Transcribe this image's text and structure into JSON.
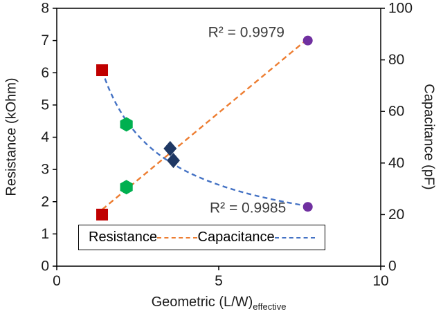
{
  "chart_data": {
    "type": "scatter",
    "title": "",
    "xlabel": "Geometric (L/W)",
    "xlabel_subscript": "effective",
    "ylabel_left": "Resistance (kOhm)",
    "ylabel_right": "Capacitance (pF)",
    "xlim": [
      0,
      10
    ],
    "xticks": [
      0,
      5,
      10
    ],
    "ylim_left": [
      0,
      8
    ],
    "yticks_left": [
      0,
      1,
      2,
      3,
      4,
      5,
      6,
      7,
      8
    ],
    "ylim_right": [
      0,
      100
    ],
    "yticks_right": [
      0,
      20,
      40,
      60,
      80,
      100
    ],
    "grid": false,
    "legend_position": "bottom-inside",
    "series": [
      {
        "name": "Resistance",
        "axis": "left",
        "trend": {
          "type": "linear",
          "style": "dashed",
          "color": "#ED7D31"
        },
        "r_squared": 0.9979,
        "points": [
          {
            "x": 1.4,
            "y": 1.6,
            "marker": "square",
            "color": "#C00000"
          },
          {
            "x": 2.15,
            "y": 2.45,
            "marker": "hexagon",
            "color": "#00B050"
          },
          {
            "x": 3.5,
            "y": 3.65,
            "marker": "diamond",
            "color": "#1F3864"
          },
          {
            "x": 7.75,
            "y": 7.0,
            "marker": "circle",
            "color": "#7030A0"
          }
        ]
      },
      {
        "name": "Capacitance",
        "axis": "right",
        "trend": {
          "type": "power",
          "style": "dashed",
          "color": "#4472C4"
        },
        "r_squared": 0.9985,
        "points": [
          {
            "x": 1.4,
            "y": 76,
            "marker": "square",
            "color": "#C00000"
          },
          {
            "x": 2.15,
            "y": 55,
            "marker": "hexagon",
            "color": "#00B050"
          },
          {
            "x": 3.6,
            "y": 41,
            "marker": "diamond",
            "color": "#1F3864"
          },
          {
            "x": 7.75,
            "y": 23,
            "marker": "circle",
            "color": "#7030A0"
          }
        ]
      }
    ],
    "annotations": [
      {
        "text": "R² = 0.9979",
        "x": 5.85,
        "y_left": 7.25
      },
      {
        "text": "R² = 0.9985",
        "x": 5.9,
        "y_left": 1.8
      }
    ],
    "legend": {
      "items": [
        {
          "label": "Resistance",
          "line_color": "#ED7D31"
        },
        {
          "label": "Capacitance",
          "line_color": "#4472C4"
        }
      ]
    }
  }
}
